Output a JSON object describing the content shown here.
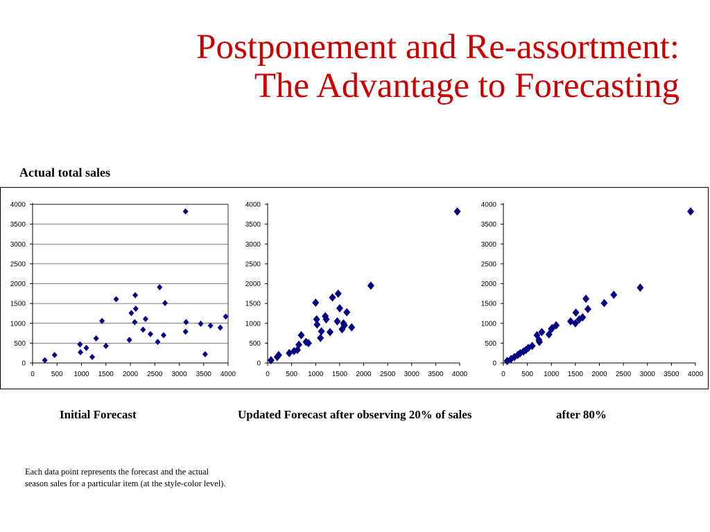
{
  "slide": {
    "title_line1": "Postponement and Re-assortment:",
    "title_line2": "The Advantage to Forecasting",
    "subtitle": "Actual total sales",
    "captions": [
      "Initial Forecast",
      "Updated Forecast after observing 20% of sales",
      "after 80%"
    ],
    "note_line1": "Each data point represents the forecast and the actual",
    "note_line2": "season sales for a particular item (at the style-color level)."
  },
  "colors": {
    "title": "#cc0000",
    "marker": "#000080"
  },
  "chart_data": [
    {
      "type": "scatter",
      "caption": "Initial Forecast",
      "xlim": [
        0,
        4000
      ],
      "ylim": [
        0,
        4000
      ],
      "xticks": [
        0,
        500,
        1000,
        1500,
        2000,
        2500,
        3000,
        3500,
        4000
      ],
      "yticks": [
        0,
        500,
        1000,
        1500,
        2000,
        2500,
        3000,
        3500,
        4000
      ],
      "grid": "horizontal",
      "points": [
        [
          250,
          70
        ],
        [
          450,
          200
        ],
        [
          970,
          470
        ],
        [
          980,
          270
        ],
        [
          1100,
          380
        ],
        [
          1220,
          150
        ],
        [
          1300,
          620
        ],
        [
          1420,
          1060
        ],
        [
          1500,
          430
        ],
        [
          1710,
          1610
        ],
        [
          1980,
          580
        ],
        [
          2020,
          1260
        ],
        [
          2090,
          1030
        ],
        [
          2100,
          1710
        ],
        [
          2110,
          1370
        ],
        [
          2260,
          840
        ],
        [
          2310,
          1110
        ],
        [
          2410,
          730
        ],
        [
          2560,
          530
        ],
        [
          2600,
          1910
        ],
        [
          2680,
          700
        ],
        [
          2710,
          1510
        ],
        [
          3130,
          3820
        ],
        [
          3130,
          790
        ],
        [
          3140,
          1030
        ],
        [
          3440,
          990
        ],
        [
          3530,
          220
        ],
        [
          3640,
          940
        ],
        [
          3840,
          890
        ],
        [
          3950,
          1170
        ]
      ]
    },
    {
      "type": "scatter",
      "caption": "Updated Forecast after observing 20% of sales",
      "xlim": [
        0,
        4000
      ],
      "ylim": [
        0,
        4000
      ],
      "xticks": [
        0,
        500,
        1000,
        1500,
        2000,
        2500,
        3000,
        3500,
        4000
      ],
      "yticks": [
        0,
        500,
        1000,
        1500,
        2000,
        2500,
        3000,
        3500,
        4000
      ],
      "grid": "none",
      "points": [
        [
          70,
          70
        ],
        [
          200,
          150
        ],
        [
          230,
          200
        ],
        [
          450,
          250
        ],
        [
          550,
          300
        ],
        [
          620,
          330
        ],
        [
          650,
          460
        ],
        [
          700,
          700
        ],
        [
          800,
          530
        ],
        [
          850,
          500
        ],
        [
          1000,
          1520
        ],
        [
          1020,
          1100
        ],
        [
          1030,
          970
        ],
        [
          1100,
          630
        ],
        [
          1120,
          800
        ],
        [
          1200,
          1180
        ],
        [
          1220,
          1100
        ],
        [
          1300,
          780
        ],
        [
          1350,
          1650
        ],
        [
          1450,
          1050
        ],
        [
          1470,
          1750
        ],
        [
          1500,
          1380
        ],
        [
          1550,
          850
        ],
        [
          1580,
          1000
        ],
        [
          1600,
          950
        ],
        [
          1650,
          1280
        ],
        [
          1750,
          900
        ],
        [
          2150,
          1950
        ],
        [
          3950,
          3820
        ]
      ]
    },
    {
      "type": "scatter",
      "caption": "after 80%",
      "xlim": [
        0,
        4000
      ],
      "ylim": [
        0,
        4000
      ],
      "xticks": [
        0,
        500,
        1000,
        1500,
        2000,
        2500,
        3000,
        3500,
        4000
      ],
      "yticks": [
        0,
        500,
        1000,
        1500,
        2000,
        2500,
        3000,
        3500,
        4000
      ],
      "grid": "none",
      "points": [
        [
          80,
          50
        ],
        [
          160,
          100
        ],
        [
          230,
          150
        ],
        [
          300,
          200
        ],
        [
          350,
          250
        ],
        [
          420,
          290
        ],
        [
          470,
          330
        ],
        [
          520,
          380
        ],
        [
          600,
          430
        ],
        [
          700,
          700
        ],
        [
          740,
          580
        ],
        [
          750,
          530
        ],
        [
          800,
          780
        ],
        [
          950,
          720
        ],
        [
          1000,
          860
        ],
        [
          1020,
          880
        ],
        [
          1100,
          950
        ],
        [
          1400,
          1050
        ],
        [
          1500,
          1000
        ],
        [
          1510,
          1270
        ],
        [
          1580,
          1100
        ],
        [
          1650,
          1150
        ],
        [
          1720,
          1620
        ],
        [
          1760,
          1360
        ],
        [
          2100,
          1510
        ],
        [
          2300,
          1720
        ],
        [
          2850,
          1900
        ],
        [
          3900,
          3820
        ]
      ]
    }
  ]
}
